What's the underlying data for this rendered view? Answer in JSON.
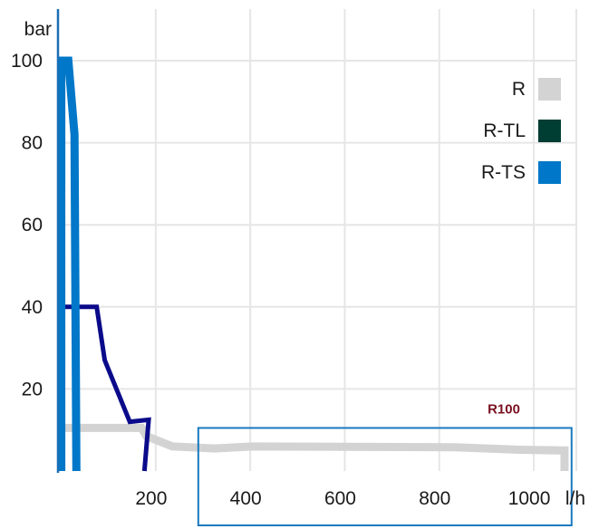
{
  "chart_data": {
    "type": "line",
    "y_unit": "bar",
    "x_unit": "l/h",
    "xlim": [
      -5,
      1090
    ],
    "ylim": [
      0,
      100
    ],
    "x_ticks": [
      200,
      400,
      600,
      800,
      1000
    ],
    "y_ticks": [
      20,
      40,
      60,
      80,
      100
    ],
    "grid": true,
    "legend_position": "top-right",
    "legend": [
      {
        "label": "R",
        "color": "#d3d3d3"
      },
      {
        "label": "R-TL",
        "color": "#003d33"
      },
      {
        "label": "R-TS",
        "color": "#0077c8"
      }
    ],
    "series": [
      {
        "name": "R",
        "color": "#d3d3d3",
        "points": [
          [
            0,
            10.5
          ],
          [
            170,
            10.5
          ],
          [
            180,
            8.5
          ],
          [
            235,
            6
          ],
          [
            325,
            5.5
          ],
          [
            405,
            6
          ],
          [
            830,
            5.8
          ],
          [
            970,
            5.2
          ],
          [
            1065,
            5
          ],
          [
            1065,
            0
          ]
        ]
      },
      {
        "color": "#000000",
        "points": [
          [
            0,
            0
          ],
          [
            0,
            40
          ]
        ]
      },
      {
        "color": "#0a0a8a",
        "points": [
          [
            0,
            40
          ],
          [
            75,
            40
          ],
          [
            92,
            27
          ],
          [
            145,
            12
          ],
          [
            185,
            12.5
          ],
          [
            176,
            0
          ]
        ]
      },
      {
        "color": "#0077c8",
        "points": [
          [
            0,
            0
          ],
          [
            0,
            100
          ],
          [
            15,
            100
          ],
          [
            28,
            82
          ],
          [
            32,
            0
          ]
        ]
      }
    ],
    "annotation": {
      "label": "R100",
      "x_range": [
        290,
        1080
      ],
      "y_top": 10.5
    }
  }
}
